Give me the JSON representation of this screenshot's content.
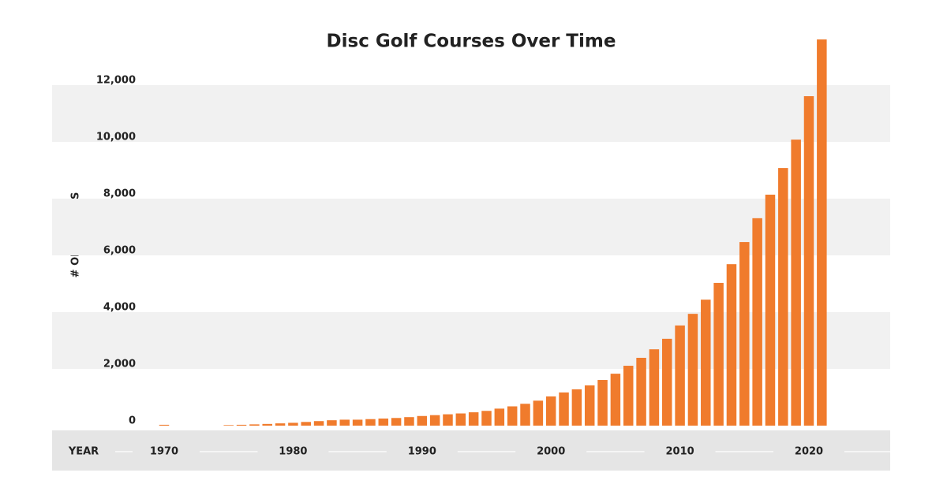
{
  "chart_data": {
    "type": "bar",
    "title": "Disc Golf Courses Over Time",
    "y_label": "# OF COURSES",
    "x_label": "YEAR",
    "categories": [
      "1970",
      null,
      null,
      null,
      null,
      null,
      null,
      null,
      null,
      null,
      "1980",
      null,
      null,
      null,
      null,
      null,
      null,
      null,
      null,
      null,
      "1990",
      null,
      null,
      null,
      null,
      null,
      null,
      null,
      null,
      null,
      "2000",
      null,
      null,
      null,
      null,
      null,
      null,
      null,
      null,
      null,
      "2010",
      null,
      null,
      null,
      null,
      null,
      null,
      null,
      null,
      null,
      "2020",
      null
    ],
    "values": [
      30,
      0,
      0,
      0,
      0,
      20,
      30,
      45,
      60,
      80,
      100,
      130,
      160,
      190,
      210,
      210,
      230,
      250,
      270,
      300,
      340,
      370,
      400,
      430,
      470,
      520,
      600,
      680,
      770,
      880,
      1030,
      1170,
      1280,
      1420,
      1610,
      1830,
      2110,
      2390,
      2690,
      3060,
      3530,
      3940,
      4440,
      5030,
      5690,
      6470,
      7310,
      8140,
      9080,
      10080,
      11610,
      13610
    ],
    "color": "#f07b2c",
    "ylim": [
      0,
      14000
    ],
    "yticks": [
      0,
      {
        "value": 2000,
        "label": "2,000"
      },
      {
        "value": 4000,
        "label": "4,000"
      },
      {
        "value": 6000,
        "label": "6,000"
      },
      {
        "value": 8000,
        "label": "8,000"
      },
      {
        "value": 10000,
        "label": "10,000"
      },
      {
        "value": 12000,
        "label": "12,000"
      }
    ],
    "grid": true
  }
}
